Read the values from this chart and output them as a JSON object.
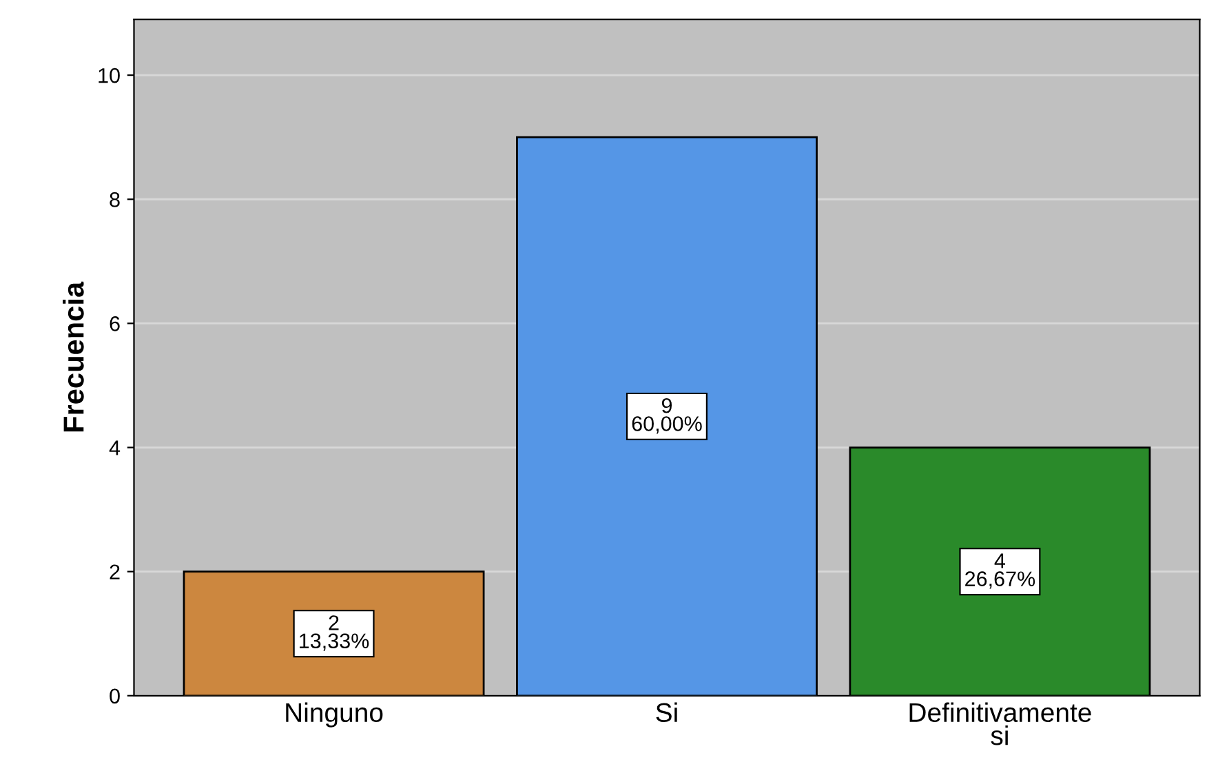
{
  "chart_data": {
    "type": "bar",
    "ylabel": "Frecuencia",
    "categories": [
      "Ninguno",
      "Si",
      "Definitivamente si"
    ],
    "values": [
      2,
      9,
      4
    ],
    "colors": [
      "#cc873f",
      "#5596e6",
      "#2a8a2a"
    ],
    "value_labels": [
      "2\n13,33%",
      "9\n60,00%",
      "4\n26,67%"
    ],
    "ylim": [
      0,
      10.9
    ],
    "yticks": [
      0,
      2,
      4,
      6,
      8,
      10
    ],
    "grid": "y"
  }
}
